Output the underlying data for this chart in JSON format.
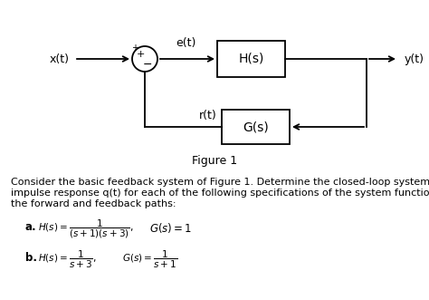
{
  "figure_label": "Figure 1",
  "line1": "Consider the basic feedback system of Figure 1. Determine the closed-loop system",
  "line2": "impulse response q(t) for each of the following specifications of the system functions in",
  "line3": "the forward and feedback paths:",
  "item_a_label": "a.",
  "item_a_Hs": "$H(s) = \\dfrac{1}{(s+1)(s+3)},$",
  "item_a_Gs": "$G(s) = 1$",
  "item_b_label": "b.",
  "item_b_Hs": "$H(s) = \\dfrac{1}{s+3},$",
  "item_b_Gs": "$G(s) = \\dfrac{1}{s+1}$",
  "xt": "x(t)",
  "et": "e(t)",
  "yt": "y(t)",
  "rt": "r(t)",
  "Hs": "H(s)",
  "Gs": "G(s)",
  "plus_top": "+",
  "plus_in": "+",
  "minus_in": "−",
  "bg_color": "#ffffff"
}
